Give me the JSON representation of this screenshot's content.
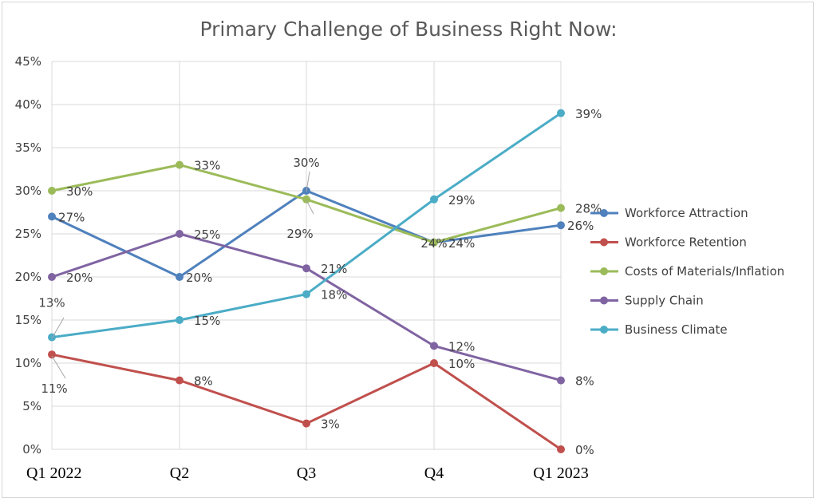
{
  "chart_data": {
    "type": "line",
    "title": "Primary Challenge of Business Right Now:",
    "xlabel": "",
    "ylabel": "",
    "categories": [
      "Q1 2022",
      "Q2",
      "Q3",
      "Q4",
      "Q1 2023"
    ],
    "ylim": [
      0,
      45
    ],
    "yticks": [
      "0%",
      "5%",
      "10%",
      "15%",
      "20%",
      "25%",
      "30%",
      "35%",
      "40%",
      "45%"
    ],
    "grid": true,
    "legend_position": "right",
    "series": [
      {
        "name": "Workforce Attraction",
        "color": "#4f81bd",
        "values": [
          27,
          20,
          30,
          24,
          26
        ],
        "labels": [
          "27%",
          "20%",
          "30%",
          "24%",
          "26%"
        ]
      },
      {
        "name": "Workforce Retention",
        "color": "#c0504d",
        "values": [
          11,
          8,
          3,
          10,
          0
        ],
        "labels": [
          "11%",
          "8%",
          "3%",
          "10%",
          "0%"
        ]
      },
      {
        "name": "Costs of Materials/Inflation",
        "color": "#9bbb59",
        "values": [
          30,
          33,
          29,
          24,
          28
        ],
        "labels": [
          "30%",
          "33%",
          "29%",
          "24%",
          "28%"
        ]
      },
      {
        "name": "Supply Chain",
        "color": "#8064a2",
        "values": [
          20,
          25,
          21,
          12,
          8
        ],
        "labels": [
          "20%",
          "25%",
          "21%",
          "12%",
          "8%"
        ]
      },
      {
        "name": "Business Climate",
        "color": "#4bacc6",
        "values": [
          13,
          15,
          18,
          29,
          39
        ],
        "labels": [
          "13%",
          "15%",
          "18%",
          "29%",
          "39%"
        ]
      }
    ]
  }
}
